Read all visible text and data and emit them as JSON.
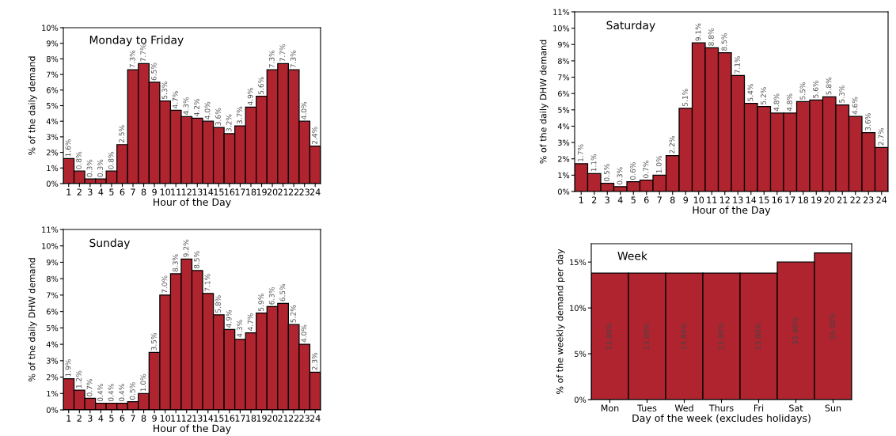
{
  "chart_data": [
    {
      "type": "bar",
      "title": "Monday to Friday",
      "xlabel": "Hour of the Day",
      "ylabel": "% of the daily demand",
      "categories": [
        "1",
        "2",
        "3",
        "4",
        "5",
        "6",
        "7",
        "8",
        "9",
        "10",
        "11",
        "12",
        "13",
        "14",
        "15",
        "16",
        "17",
        "18",
        "19",
        "20",
        "21",
        "22",
        "23",
        "24"
      ],
      "series": [
        {
          "color": "#b0242f",
          "values": [
            1.6,
            0.8,
            0.3,
            0.3,
            0.8,
            2.5,
            7.3,
            7.7,
            6.5,
            5.3,
            4.7,
            4.3,
            4.2,
            4.0,
            3.6,
            3.2,
            3.7,
            4.9,
            5.6,
            7.3,
            7.7,
            7.3,
            4.0,
            2.4
          ],
          "value_labels": [
            "1.6%",
            "0.8%",
            "0.3%",
            "0.3%",
            "0.8%",
            "2.5%",
            "7.3%",
            "7.7%",
            "6.5%",
            "5.3%",
            "4.7%",
            "4.3%",
            "4.2%",
            "4.0%",
            "3.6%",
            "3.2%",
            "3.7%",
            "4.9%",
            "5.6%",
            "7.3%",
            "7.7%",
            "7.3%",
            "4.0%",
            "2.4%"
          ]
        }
      ],
      "ylim": [
        0,
        10
      ],
      "yticks": [
        {
          "value": 0,
          "label": "0%"
        },
        {
          "value": 1,
          "label": "1%"
        },
        {
          "value": 2,
          "label": "2%"
        },
        {
          "value": 3,
          "label": "3%"
        },
        {
          "value": 4,
          "label": "4%"
        },
        {
          "value": 5,
          "label": "5%"
        },
        {
          "value": 6,
          "label": "6%"
        },
        {
          "value": 7,
          "label": "7%"
        },
        {
          "value": 8,
          "label": "8%"
        },
        {
          "value": 9,
          "label": "9%"
        },
        {
          "value": 10,
          "label": "10%"
        }
      ],
      "grid": false,
      "legend": false
    },
    {
      "type": "bar",
      "title": "Saturday",
      "xlabel": "Hour of the Day",
      "ylabel": "% of the daily DHW demand",
      "categories": [
        "1",
        "2",
        "3",
        "4",
        "5",
        "6",
        "7",
        "8",
        "9",
        "10",
        "11",
        "12",
        "13",
        "14",
        "15",
        "16",
        "17",
        "18",
        "19",
        "20",
        "21",
        "22",
        "23",
        "24"
      ],
      "series": [
        {
          "color": "#b0242f",
          "values": [
            1.7,
            1.1,
            0.5,
            0.3,
            0.6,
            0.7,
            1.0,
            2.2,
            5.1,
            9.1,
            8.8,
            8.5,
            7.1,
            5.4,
            5.2,
            4.8,
            4.8,
            5.5,
            5.6,
            5.8,
            5.3,
            4.6,
            3.6,
            2.7
          ],
          "value_labels": [
            "1.7%",
            "1.1%",
            "0.5%",
            "0.3%",
            "0.6%",
            "0.7%",
            "1.0%",
            "2.2%",
            "5.1%",
            "9.1%",
            "8.8%",
            "8.5%",
            "7.1%",
            "5.4%",
            "5.2%",
            "4.8%",
            "4.8%",
            "5.5%",
            "5.6%",
            "5.8%",
            "5.3%",
            "4.6%",
            "3.6%",
            "2.7%"
          ]
        }
      ],
      "ylim": [
        0,
        11
      ],
      "yticks": [
        {
          "value": 0,
          "label": "0%"
        },
        {
          "value": 1,
          "label": "1%"
        },
        {
          "value": 2,
          "label": "2%"
        },
        {
          "value": 3,
          "label": "3%"
        },
        {
          "value": 4,
          "label": "4%"
        },
        {
          "value": 5,
          "label": "5%"
        },
        {
          "value": 6,
          "label": "6%"
        },
        {
          "value": 7,
          "label": "7%"
        },
        {
          "value": 8,
          "label": "8%"
        },
        {
          "value": 9,
          "label": "9%"
        },
        {
          "value": 10,
          "label": "10%"
        },
        {
          "value": 11,
          "label": "11%"
        }
      ],
      "grid": false,
      "legend": false
    },
    {
      "type": "bar",
      "title": "Sunday",
      "xlabel": "Hour of the Day",
      "ylabel": "% of the daily DHW demand",
      "categories": [
        "1",
        "2",
        "3",
        "4",
        "5",
        "6",
        "7",
        "8",
        "9",
        "10",
        "11",
        "12",
        "13",
        "14",
        "15",
        "16",
        "17",
        "18",
        "19",
        "20",
        "21",
        "22",
        "23",
        "24"
      ],
      "series": [
        {
          "color": "#b0242f",
          "values": [
            1.9,
            1.2,
            0.7,
            0.4,
            0.4,
            0.4,
            0.5,
            1.0,
            3.5,
            7.0,
            8.3,
            9.2,
            8.5,
            7.1,
            5.8,
            4.9,
            4.3,
            4.7,
            5.9,
            6.3,
            6.5,
            5.2,
            4.0,
            2.3
          ],
          "value_labels": [
            "1.9%",
            "1.2%",
            "0.7%",
            "0.4%",
            "0.4%",
            "0.4%",
            "0.5%",
            "1.0%",
            "3.5%",
            "7.0%",
            "8.3%",
            "9.2%",
            "8.5%",
            "7.1%",
            "5.8%",
            "4.9%",
            "4.3%",
            "4.7%",
            "5.9%",
            "6.3%",
            "6.5%",
            "5.2%",
            "4.0%",
            "2.3%"
          ]
        }
      ],
      "ylim": [
        0,
        11
      ],
      "yticks": [
        {
          "value": 0,
          "label": "0%"
        },
        {
          "value": 1,
          "label": "1%"
        },
        {
          "value": 2,
          "label": "2%"
        },
        {
          "value": 3,
          "label": "3%"
        },
        {
          "value": 4,
          "label": "4%"
        },
        {
          "value": 5,
          "label": "5%"
        },
        {
          "value": 6,
          "label": "6%"
        },
        {
          "value": 7,
          "label": "7%"
        },
        {
          "value": 8,
          "label": "8%"
        },
        {
          "value": 9,
          "label": "9%"
        },
        {
          "value": 10,
          "label": "10%"
        },
        {
          "value": 11,
          "label": "11%"
        }
      ],
      "grid": false,
      "legend": false
    },
    {
      "type": "bar",
      "title": "Week",
      "xlabel": "Day of the week (excludes holidays)",
      "ylabel": "% of the weekly demand per day",
      "categories": [
        "Mon",
        "Tues",
        "Wed",
        "Thurs",
        "Fri",
        "Sat",
        "Sun"
      ],
      "series": [
        {
          "color": "#b0242f",
          "values": [
            13.8,
            13.8,
            13.8,
            13.8,
            13.8,
            15.0,
            16.0
          ],
          "value_labels": [
            "13.80%",
            "13.80%",
            "13.80%",
            "13.80%",
            "13.80%",
            "15.00%",
            "16.00%"
          ]
        }
      ],
      "ylim": [
        0,
        17
      ],
      "yticks": [
        {
          "value": 0,
          "label": "0%"
        },
        {
          "value": 5,
          "label": "5%"
        },
        {
          "value": 10,
          "label": "10%"
        },
        {
          "value": 15,
          "label": "15%"
        }
      ],
      "grid": false,
      "legend": false
    }
  ]
}
